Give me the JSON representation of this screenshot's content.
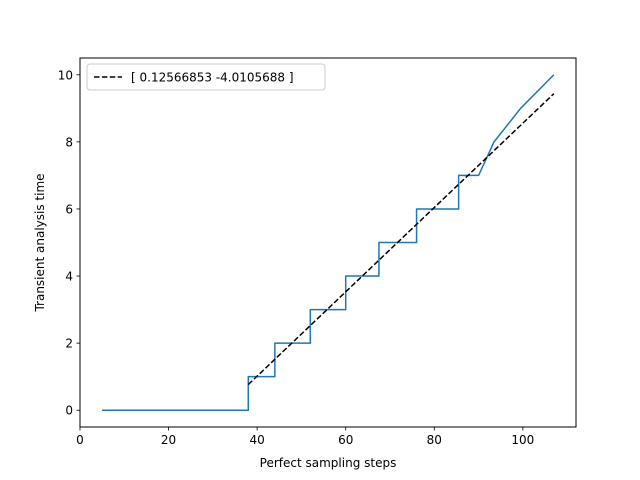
{
  "chart_data": {
    "type": "line",
    "title": "",
    "xlabel": "Perfect sampling steps",
    "ylabel": "Transient analysis time",
    "xlim": [
      0,
      112
    ],
    "ylim": [
      -0.5,
      10.5
    ],
    "xticks": [
      0,
      20,
      40,
      60,
      80,
      100
    ],
    "yticks": [
      0,
      2,
      4,
      6,
      8,
      10
    ],
    "grid": false,
    "legend_position": "upper-left",
    "series": [
      {
        "name": "",
        "style": "solid",
        "color": "#1f77b4",
        "x": [
          5,
          38,
          38,
          44,
          44,
          52,
          52,
          60,
          60,
          67.5,
          67.5,
          76,
          76,
          85.5,
          85.5,
          90,
          93.5,
          99.5,
          107
        ],
        "y": [
          0,
          0,
          1,
          1,
          2,
          2,
          3,
          3,
          4,
          4,
          5,
          5,
          6,
          6,
          7,
          7,
          8,
          9,
          10
        ]
      },
      {
        "name": "[ 0.12566853 -4.0105688 ]",
        "style": "dashed",
        "color": "#000000",
        "x": [
          38,
          107
        ],
        "y": [
          0.765,
          9.436
        ]
      }
    ]
  }
}
